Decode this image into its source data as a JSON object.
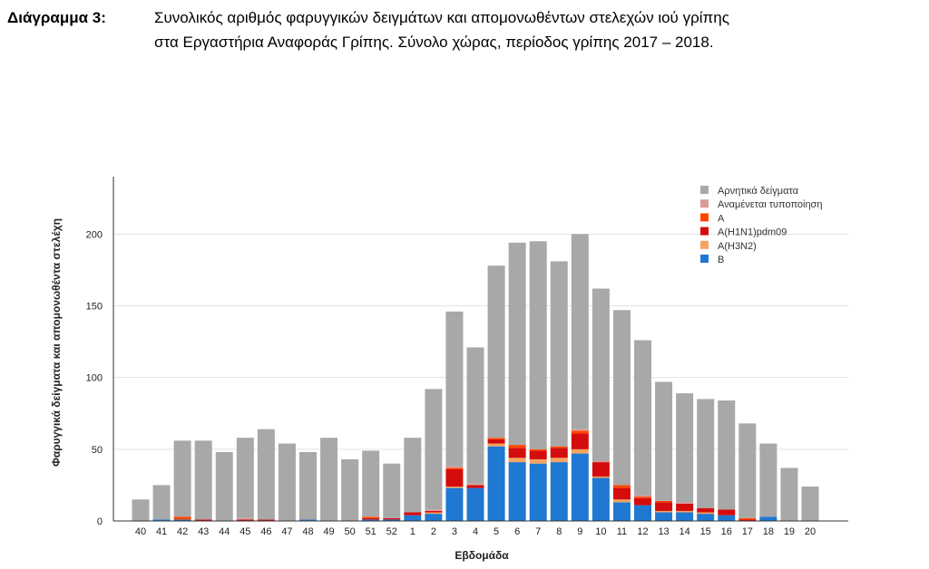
{
  "caption": {
    "label": "Διάγραμμα 3:",
    "text_line1": "Συνολικός αριθμός φαρυγγικών δειγμάτων και απομονωθέντων στελεχών ιού γρίπης",
    "text_line2": "στα Εργαστήρια Αναφοράς Γρίπης. Σύνολο χώρας, περίοδος γρίπης 2017 – 2018."
  },
  "chart_data": {
    "type": "bar",
    "stacked": true,
    "xlabel": "Εβδομάδα",
    "ylabel": "Φαρυγγικά δείγματα και απομονωθέντα στελέχη",
    "ylim": [
      0,
      240
    ],
    "yticks": [
      0,
      50,
      100,
      150,
      200
    ],
    "grid": true,
    "legend_position": "top-right",
    "categories": [
      "40",
      "41",
      "42",
      "43",
      "44",
      "45",
      "46",
      "47",
      "48",
      "49",
      "50",
      "51",
      "52",
      "1",
      "2",
      "3",
      "4",
      "5",
      "6",
      "7",
      "8",
      "9",
      "10",
      "11",
      "12",
      "13",
      "14",
      "15",
      "16",
      "17",
      "18",
      "19",
      "20"
    ],
    "series": [
      {
        "name": "B",
        "color": "#1f78d1",
        "values": [
          0,
          1,
          1,
          0,
          0,
          0,
          0,
          0,
          1,
          0,
          0,
          1,
          1,
          4,
          5,
          23,
          23,
          52,
          41,
          40,
          41,
          47,
          30,
          13,
          11,
          6,
          6,
          5,
          4,
          0,
          3,
          0,
          0
        ]
      },
      {
        "name": "A(H3N2)",
        "color": "#f4a460",
        "values": [
          0,
          0,
          0,
          0,
          0,
          0,
          0,
          0,
          0,
          0,
          0,
          0,
          0,
          0,
          1,
          1,
          0,
          2,
          3,
          3,
          3,
          3,
          1,
          2,
          0,
          1,
          1,
          1,
          0,
          0,
          0,
          0,
          0
        ]
      },
      {
        "name": "A(H1N1)pdm09",
        "color": "#d40c0c",
        "values": [
          0,
          0,
          0,
          1,
          0,
          1,
          1,
          0,
          0,
          0,
          0,
          1,
          1,
          2,
          1,
          12,
          2,
          3,
          7,
          6,
          7,
          11,
          10,
          8,
          5,
          6,
          5,
          3,
          4,
          1,
          0,
          0,
          0
        ]
      },
      {
        "name": "A",
        "color": "#ff4500",
        "values": [
          0,
          0,
          2,
          0,
          0,
          0,
          0,
          0,
          0,
          0,
          0,
          1,
          0,
          0,
          0,
          1,
          0,
          1,
          2,
          1,
          1,
          2,
          0,
          2,
          1,
          1,
          0,
          0,
          0,
          1,
          0,
          0,
          0
        ]
      },
      {
        "name": "Αναμένεται τυποποίηση",
        "color": "#d99a9a",
        "values": [
          0,
          0,
          0,
          0,
          0,
          1,
          0,
          0,
          0,
          0,
          0,
          0,
          0,
          0,
          1,
          1,
          1,
          0,
          0,
          0,
          0,
          1,
          1,
          0,
          1,
          0,
          1,
          0,
          0,
          0,
          0,
          0,
          0
        ]
      },
      {
        "name": "Αρνητικά δείγματα",
        "color": "#a8a8a8",
        "values": [
          15,
          24,
          53,
          55,
          48,
          56,
          63,
          54,
          47,
          58,
          43,
          46,
          38,
          52,
          84,
          108,
          95,
          120,
          141,
          145,
          129,
          136,
          120,
          122,
          108,
          83,
          76,
          76,
          76,
          66,
          51,
          37,
          24
        ]
      }
    ],
    "legend_order": [
      "Αρνητικά δείγματα",
      "Αναμένεται τυποποίηση",
      "A",
      "A(H1N1)pdm09",
      "A(H3N2)",
      "B"
    ]
  }
}
